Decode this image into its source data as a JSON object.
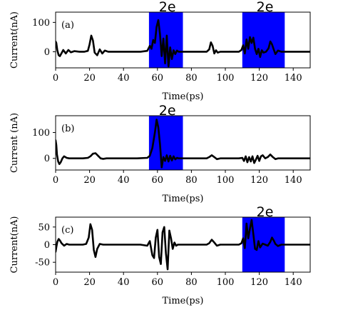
{
  "colors": {
    "band": "#0000ff",
    "trace": "#000000",
    "axes": "#000000",
    "background": "#ffffff"
  },
  "chart_data": [
    {
      "type": "line",
      "panel_label": "(a)",
      "xlabel": "Time(ps)",
      "ylabel": "Current(nA)",
      "xlim": [
        0,
        150
      ],
      "ylim": [
        -55,
        135
      ],
      "xticks": [
        0,
        20,
        40,
        60,
        80,
        100,
        120,
        140
      ],
      "yticks": [
        0,
        100
      ],
      "grid": false,
      "shaded_regions": [
        {
          "x0": 55,
          "x1": 75,
          "label": "2e"
        },
        {
          "x0": 110,
          "x1": 135,
          "label": "2e"
        }
      ],
      "series": [
        {
          "x": [
            0,
            0.4,
            1,
            1.8,
            2.5,
            3.2,
            4.5,
            6,
            7.5,
            9,
            11,
            14,
            17,
            19,
            20,
            21,
            22,
            23,
            24.5,
            26,
            27.5,
            29,
            31,
            33,
            36,
            40,
            45,
            50,
            54,
            55.5,
            56.5,
            57.5,
            58.5,
            59.5,
            60.5,
            61.5,
            62.5,
            63.5,
            64.5,
            65.5,
            66.5,
            67.5,
            68.5,
            69.5,
            70.5,
            71.5,
            72.5,
            74,
            76,
            80,
            85,
            89,
            90.5,
            91.5,
            92.5,
            93.5,
            94.5,
            95.5,
            97,
            100,
            104,
            108,
            109.5,
            110.5,
            111.5,
            112.5,
            113.5,
            114.5,
            115.5,
            116.5,
            117.5,
            118.5,
            119.5,
            120.5,
            121.5,
            122.5,
            124,
            125.5,
            126.5,
            127.5,
            128.5,
            129.5,
            131,
            133,
            136,
            140,
            145,
            150
          ],
          "y": [
            35,
            30,
            5,
            -12,
            -15,
            -8,
            6,
            -6,
            6,
            -2,
            2,
            0,
            0,
            3,
            25,
            55,
            38,
            -3,
            -12,
            8,
            -6,
            4,
            0,
            0,
            0,
            0,
            0,
            0,
            3,
            20,
            10,
            40,
            30,
            85,
            108,
            60,
            -15,
            45,
            -40,
            55,
            -50,
            15,
            -25,
            5,
            -8,
            4,
            0,
            0,
            0,
            0,
            0,
            0,
            8,
            32,
            20,
            -6,
            5,
            -3,
            0,
            0,
            0,
            0,
            6,
            22,
            -6,
            42,
            10,
            50,
            30,
            48,
            10,
            -8,
            10,
            -18,
            5,
            -3,
            0,
            12,
            35,
            25,
            8,
            -8,
            4,
            0,
            0,
            0,
            0,
            0
          ]
        }
      ]
    },
    {
      "type": "line",
      "panel_label": "(b)",
      "xlabel": "Time(ps)",
      "ylabel": "Current (nA)",
      "xlim": [
        0,
        150
      ],
      "ylim": [
        -45,
        165
      ],
      "xticks": [
        0,
        20,
        40,
        60,
        80,
        100,
        120,
        140
      ],
      "yticks": [
        0,
        100
      ],
      "grid": false,
      "shaded_regions": [
        {
          "x0": 55,
          "x1": 75,
          "label": "2e"
        }
      ],
      "series": [
        {
          "x": [
            0,
            0.4,
            0.8,
            1.5,
            2.2,
            3,
            4,
            5,
            6.5,
            8,
            10,
            13,
            16,
            19,
            20.5,
            22,
            23.5,
            25,
            26.5,
            28,
            30,
            34,
            40,
            48,
            54,
            55.5,
            57,
            58.5,
            59.5,
            60.5,
            61.5,
            62.5,
            63.5,
            64.5,
            65.5,
            66.5,
            67.5,
            68.5,
            69.5,
            70.5,
            71.5,
            72.5,
            74,
            76,
            80,
            86,
            89,
            90.5,
            92,
            93.5,
            95,
            97,
            100,
            104,
            108,
            110,
            111,
            112,
            113,
            114,
            115,
            116,
            117,
            118,
            119,
            120,
            121,
            122,
            123.5,
            125,
            126.5,
            128,
            129.5,
            131,
            133,
            136,
            140,
            145,
            150
          ],
          "y": [
            70,
            52,
            15,
            -12,
            -22,
            -15,
            0,
            8,
            2,
            0,
            0,
            0,
            0,
            2,
            8,
            18,
            20,
            10,
            0,
            -2,
            0,
            0,
            0,
            0,
            2,
            10,
            40,
            100,
            150,
            120,
            55,
            -35,
            5,
            -10,
            12,
            -12,
            10,
            -8,
            8,
            -4,
            2,
            0,
            0,
            0,
            0,
            0,
            0,
            5,
            12,
            5,
            -3,
            0,
            0,
            0,
            0,
            2,
            -10,
            8,
            -15,
            5,
            -12,
            8,
            -18,
            -5,
            10,
            -10,
            8,
            12,
            0,
            5,
            15,
            5,
            -3,
            0,
            0,
            0,
            0,
            0,
            0
          ]
        }
      ]
    },
    {
      "type": "line",
      "panel_label": "(c)",
      "xlabel": "Time(ps)",
      "ylabel": "Current(nA)",
      "xlim": [
        0,
        150
      ],
      "ylim": [
        -78,
        78
      ],
      "xticks": [
        0,
        20,
        40,
        60,
        80,
        100,
        120,
        140
      ],
      "yticks": [
        -50,
        0,
        50
      ],
      "grid": false,
      "shaded_regions": [
        {
          "x0": 110,
          "x1": 135,
          "label": "2e"
        }
      ],
      "series": [
        {
          "x": [
            0,
            0.5,
            1,
            1.8,
            2.5,
            3.5,
            5,
            6.5,
            8,
            10,
            13,
            16,
            18,
            19.5,
            20.5,
            21.5,
            22.5,
            23.5,
            24.5,
            26,
            28,
            31,
            35,
            40,
            45,
            50,
            54,
            55.5,
            57,
            58,
            59,
            60,
            61,
            62,
            63,
            64,
            65,
            66,
            67,
            68,
            69,
            70,
            71,
            72,
            73.5,
            75,
            78,
            82,
            86,
            89,
            90.5,
            92,
            93.5,
            95,
            97,
            100,
            105,
            108,
            109.5,
            110.5,
            111.5,
            112.5,
            113.5,
            114.5,
            115.5,
            116.5,
            117.5,
            118.5,
            119.5,
            120.5,
            122,
            123.5,
            125,
            126.5,
            127.5,
            128.5,
            129.5,
            131,
            133,
            136,
            140,
            145,
            150
          ],
          "y": [
            -20,
            -5,
            8,
            16,
            12,
            4,
            -3,
            2,
            0,
            0,
            0,
            0,
            2,
            20,
            58,
            42,
            -15,
            -35,
            -12,
            2,
            0,
            0,
            0,
            0,
            0,
            0,
            -3,
            10,
            -30,
            -38,
            20,
            42,
            -35,
            -55,
            35,
            50,
            -25,
            -70,
            40,
            18,
            -12,
            6,
            -3,
            0,
            0,
            0,
            0,
            0,
            0,
            0,
            4,
            14,
            6,
            -3,
            0,
            0,
            0,
            0,
            4,
            18,
            -10,
            60,
            18,
            45,
            70,
            30,
            -12,
            -15,
            10,
            -8,
            3,
            0,
            -3,
            8,
            20,
            12,
            2,
            -4,
            0,
            0,
            0,
            0,
            0
          ]
        }
      ]
    }
  ]
}
